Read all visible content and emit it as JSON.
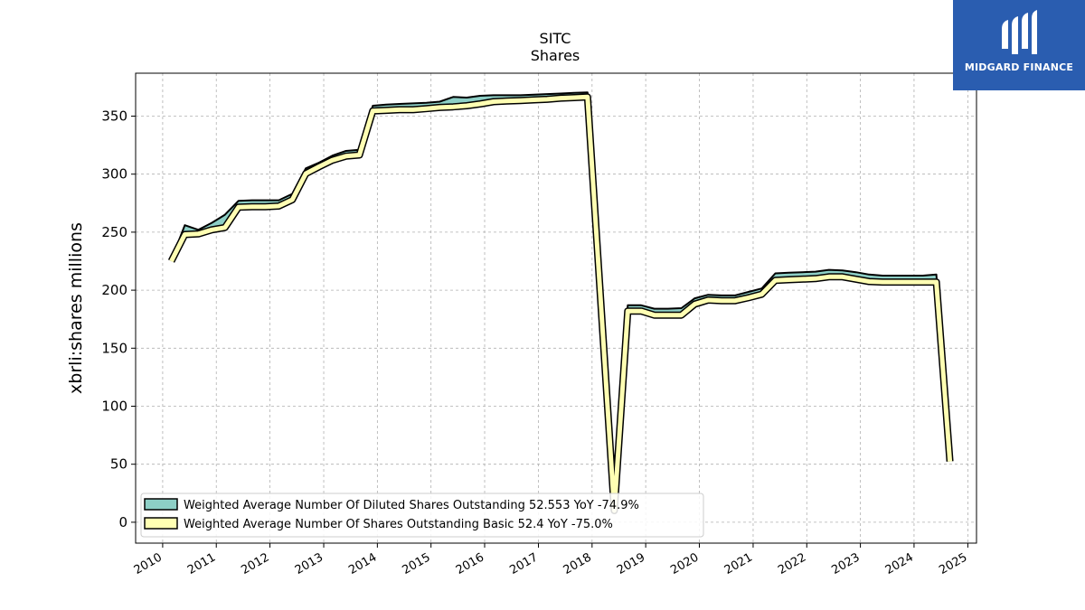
{
  "brand": {
    "name": "MIDGARD FINANCE",
    "color": "#2a5db0"
  },
  "chart_data": {
    "type": "area",
    "title": "SITC",
    "subtitle": "Shares",
    "xlabel": "",
    "ylabel": "xbrli:shares millions",
    "xlim": [
      "2009-07-01",
      "2025-03-01"
    ],
    "ylim": [
      -18,
      387
    ],
    "yticks": [
      0,
      50,
      100,
      150,
      200,
      250,
      300,
      350
    ],
    "xticks": [
      "2010",
      "2011",
      "2012",
      "2013",
      "2014",
      "2015",
      "2016",
      "2017",
      "2018",
      "2019",
      "2020",
      "2021",
      "2022",
      "2023",
      "2024",
      "2025"
    ],
    "grid": true,
    "legend_position": "lower-left",
    "series": [
      {
        "name": "Weighted Average Number Of Diluted Shares Outstanding  52.553 YoY -74.9%",
        "color": "#8dcfc6",
        "points": [
          [
            "2010-03-01",
            226
          ],
          [
            "2010-06-01",
            256
          ],
          [
            "2010-09-01",
            252
          ],
          [
            "2010-12-01",
            258
          ],
          [
            "2011-03-01",
            265
          ],
          [
            "2011-06-01",
            277
          ],
          [
            "2011-09-01",
            277.5
          ],
          [
            "2011-12-01",
            277.5
          ],
          [
            "2012-03-01",
            277.5
          ],
          [
            "2012-06-01",
            283
          ],
          [
            "2012-09-01",
            305
          ],
          [
            "2012-12-01",
            310
          ],
          [
            "2013-03-01",
            316
          ],
          [
            "2013-06-01",
            320
          ],
          [
            "2013-09-01",
            321
          ],
          [
            "2013-12-01",
            359
          ],
          [
            "2014-03-01",
            360
          ],
          [
            "2014-06-01",
            360.5
          ],
          [
            "2014-09-01",
            361
          ],
          [
            "2014-12-01",
            361.5
          ],
          [
            "2015-03-01",
            362.5
          ],
          [
            "2015-06-01",
            366.5
          ],
          [
            "2015-09-01",
            366
          ],
          [
            "2015-12-01",
            367.5
          ],
          [
            "2016-03-01",
            368
          ],
          [
            "2016-06-01",
            368
          ],
          [
            "2016-09-01",
            368
          ],
          [
            "2016-12-01",
            368.5
          ],
          [
            "2017-03-01",
            369
          ],
          [
            "2017-06-01",
            369.5
          ],
          [
            "2017-09-01",
            370
          ],
          [
            "2017-12-01",
            370.5
          ],
          [
            "2018-06-01",
            20
          ],
          [
            "2018-09-01",
            187
          ],
          [
            "2018-12-01",
            187
          ],
          [
            "2019-03-01",
            184
          ],
          [
            "2019-06-01",
            184
          ],
          [
            "2019-09-01",
            184.5
          ],
          [
            "2019-12-01",
            193
          ],
          [
            "2020-03-01",
            196
          ],
          [
            "2020-06-01",
            195.5
          ],
          [
            "2020-09-01",
            195.5
          ],
          [
            "2020-12-01",
            198.5
          ],
          [
            "2021-03-01",
            201.5
          ],
          [
            "2021-06-01",
            214.5
          ],
          [
            "2021-09-01",
            215
          ],
          [
            "2021-12-01",
            215.5
          ],
          [
            "2022-03-01",
            216
          ],
          [
            "2022-06-01",
            217.5
          ],
          [
            "2022-09-01",
            217
          ],
          [
            "2022-12-01",
            215.5
          ],
          [
            "2023-03-01",
            213.5
          ],
          [
            "2023-06-01",
            212.5
          ],
          [
            "2023-09-01",
            212.5
          ],
          [
            "2023-12-01",
            212.5
          ],
          [
            "2024-03-01",
            212.5
          ],
          [
            "2024-06-01",
            213.5
          ],
          [
            "2024-09-01",
            52.553
          ]
        ]
      },
      {
        "name": "Weighted Average Number Of Shares Outstanding Basic  52.4 YoY -75.0%",
        "color": "#ffffb3",
        "points": [
          [
            "2010-03-01",
            225
          ],
          [
            "2010-06-01",
            248
          ],
          [
            "2010-09-01",
            248.5
          ],
          [
            "2010-12-01",
            252
          ],
          [
            "2011-03-01",
            254
          ],
          [
            "2011-06-01",
            271.5
          ],
          [
            "2011-09-01",
            272
          ],
          [
            "2011-12-01",
            272
          ],
          [
            "2012-03-01",
            272.5
          ],
          [
            "2012-06-01",
            278
          ],
          [
            "2012-09-01",
            300.5
          ],
          [
            "2012-12-01",
            306.5
          ],
          [
            "2013-03-01",
            312
          ],
          [
            "2013-06-01",
            315.5
          ],
          [
            "2013-09-01",
            316.5
          ],
          [
            "2013-12-01",
            354.5
          ],
          [
            "2014-03-01",
            355
          ],
          [
            "2014-06-01",
            355.5
          ],
          [
            "2014-09-01",
            355.5
          ],
          [
            "2014-12-01",
            356.5
          ],
          [
            "2015-03-01",
            357.5
          ],
          [
            "2015-06-01",
            358
          ],
          [
            "2015-09-01",
            359
          ],
          [
            "2015-12-01",
            360.5
          ],
          [
            "2016-03-01",
            362.5
          ],
          [
            "2016-06-01",
            363
          ],
          [
            "2016-09-01",
            363.5
          ],
          [
            "2016-12-01",
            364
          ],
          [
            "2017-03-01",
            364.5
          ],
          [
            "2017-06-01",
            365.5
          ],
          [
            "2017-09-01",
            366
          ],
          [
            "2017-12-01",
            366.5
          ],
          [
            "2018-06-01",
            10
          ],
          [
            "2018-09-01",
            182
          ],
          [
            "2018-12-01",
            182
          ],
          [
            "2019-03-01",
            178.5
          ],
          [
            "2019-06-01",
            178.5
          ],
          [
            "2019-09-01",
            178.5
          ],
          [
            "2019-12-01",
            188
          ],
          [
            "2020-03-01",
            191.5
          ],
          [
            "2020-06-01",
            191
          ],
          [
            "2020-09-01",
            191
          ],
          [
            "2020-12-01",
            193.5
          ],
          [
            "2021-03-01",
            196.5
          ],
          [
            "2021-06-01",
            208.5
          ],
          [
            "2021-09-01",
            209
          ],
          [
            "2021-12-01",
            209.5
          ],
          [
            "2022-03-01",
            210
          ],
          [
            "2022-06-01",
            211.5
          ],
          [
            "2022-09-01",
            211.5
          ],
          [
            "2022-12-01",
            209.5
          ],
          [
            "2023-03-01",
            207.5
          ],
          [
            "2023-06-01",
            207
          ],
          [
            "2023-09-01",
            207
          ],
          [
            "2023-12-01",
            207
          ],
          [
            "2024-03-01",
            207
          ],
          [
            "2024-06-01",
            207
          ],
          [
            "2024-09-01",
            52.4
          ]
        ]
      }
    ]
  }
}
